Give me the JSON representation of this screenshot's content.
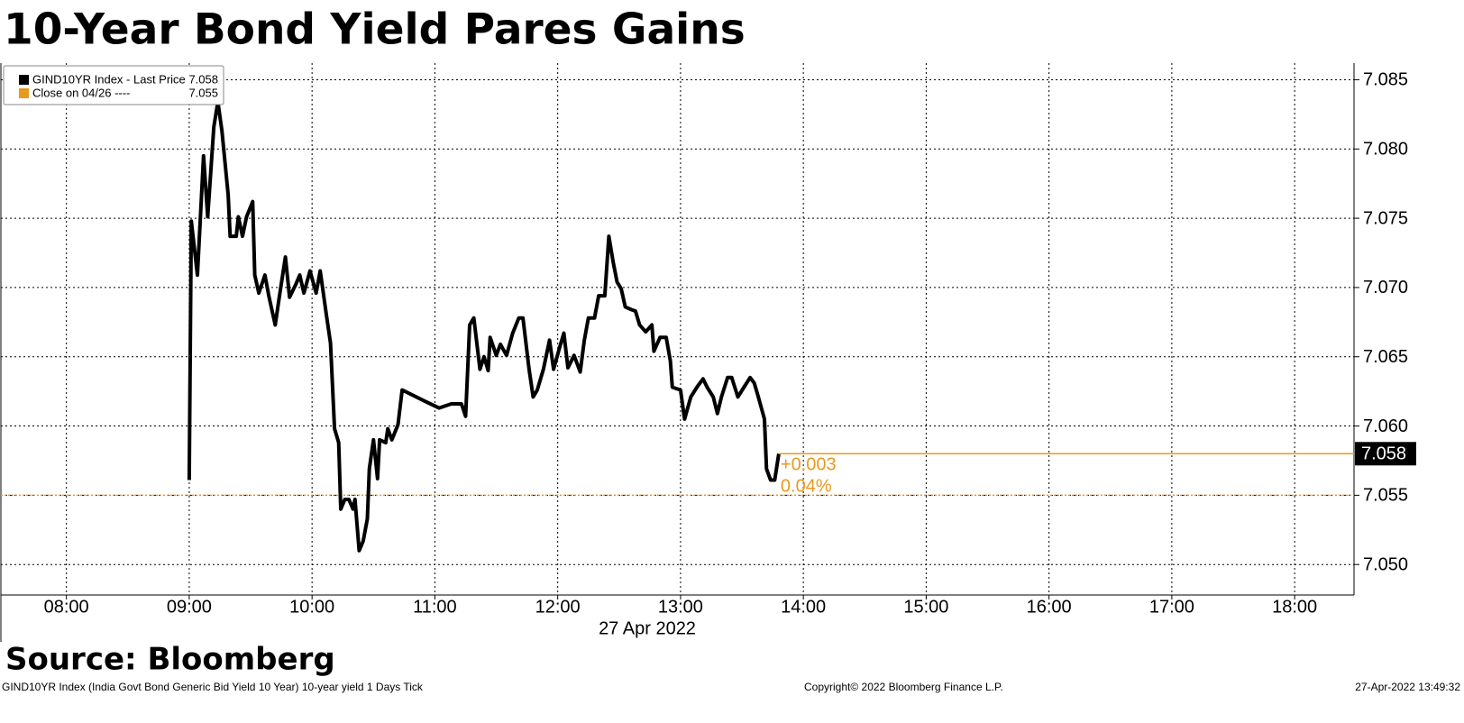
{
  "chart_data": {
    "type": "line",
    "title": "10-Year Bond Yield Pares Gains",
    "x_label": "27 Apr 2022",
    "x": [
      "09:00",
      "09:01",
      "09:04",
      "09:07",
      "09:09",
      "09:12",
      "09:14",
      "09:16",
      "09:19",
      "09:20",
      "09:23",
      "09:24",
      "09:26",
      "09:28",
      "09:31",
      "09:32",
      "09:34",
      "09:37",
      "09:39",
      "09:42",
      "09:44",
      "09:47",
      "09:49",
      "09:52",
      "09:54",
      "09:56",
      "09:59",
      "10:02",
      "10:04",
      "10:07",
      "10:09",
      "10:11",
      "10:13",
      "10:14",
      "10:16",
      "10:18",
      "10:20",
      "10:21",
      "10:23",
      "10:25",
      "10:27",
      "10:28",
      "10:30",
      "10:32",
      "10:33",
      "10:36",
      "10:37",
      "10:39",
      "10:42",
      "10:44",
      "10:55",
      "11:02",
      "11:08",
      "11:13",
      "11:15",
      "11:17",
      "11:19",
      "11:22",
      "11:24",
      "11:26",
      "11:27",
      "11:30",
      "11:32",
      "11:35",
      "11:38",
      "11:41",
      "11:43",
      "11:46",
      "11:48",
      "11:50",
      "11:53",
      "11:56",
      "11:58",
      "12:01",
      "12:03",
      "12:05",
      "12:08",
      "12:11",
      "12:13",
      "12:15",
      "12:18",
      "12:20",
      "12:23",
      "12:25",
      "12:27",
      "12:29",
      "12:31",
      "12:33",
      "12:36",
      "12:38",
      "12:40",
      "12:43",
      "12:46",
      "12:47",
      "12:50",
      "12:53",
      "12:55",
      "12:56",
      "13:00",
      "13:02",
      "13:05",
      "13:08",
      "13:11",
      "13:13",
      "13:16",
      "13:18",
      "13:20",
      "13:23",
      "13:25",
      "13:28",
      "13:31",
      "13:34",
      "13:36",
      "13:38",
      "13:41",
      "13:42",
      "13:44",
      "13:46",
      "13:48"
    ],
    "series": [
      {
        "name": "GIND10YR Index - Last Price",
        "color": "#000000",
        "last_value": 7.058,
        "values": [
          7.0561,
          7.0748,
          7.0709,
          7.0795,
          7.0751,
          7.0816,
          7.0834,
          7.0813,
          7.0767,
          7.0737,
          7.0737,
          7.0751,
          7.0737,
          7.0751,
          7.0762,
          7.0709,
          7.0696,
          7.0709,
          7.0693,
          7.0673,
          7.0693,
          7.0722,
          7.0693,
          7.0702,
          7.0709,
          7.0696,
          7.0712,
          7.0696,
          7.0712,
          7.068,
          7.066,
          7.0598,
          7.0588,
          7.054,
          7.0547,
          7.0547,
          7.054,
          7.0547,
          7.051,
          7.0517,
          7.0533,
          7.0569,
          7.059,
          7.0562,
          7.059,
          7.0588,
          7.0598,
          7.059,
          7.0601,
          7.0626,
          7.0618,
          7.0613,
          7.0616,
          7.0616,
          7.0607,
          7.0673,
          7.0678,
          7.0641,
          7.065,
          7.064,
          7.0664,
          7.0651,
          7.0659,
          7.0651,
          7.0667,
          7.0678,
          7.0678,
          7.0641,
          7.0621,
          7.0626,
          7.0641,
          7.0662,
          7.0641,
          7.0657,
          7.0667,
          7.0642,
          7.0651,
          7.0639,
          7.0662,
          7.0678,
          7.0678,
          7.0694,
          7.0694,
          7.0737,
          7.0719,
          7.0704,
          7.0699,
          7.0686,
          7.0684,
          7.0683,
          7.0673,
          7.0668,
          7.0673,
          7.0654,
          7.0664,
          7.0664,
          7.0647,
          7.0628,
          7.0626,
          7.0605,
          7.0621,
          7.0628,
          7.0634,
          7.0628,
          7.0621,
          7.0609,
          7.0621,
          7.0635,
          7.0635,
          7.0621,
          7.0628,
          7.0635,
          7.0631,
          7.0621,
          7.0605,
          7.0569,
          7.0561,
          7.0561,
          7.058
        ]
      }
    ],
    "reference": {
      "name": "Close on 04/26 ----",
      "value": 7.055,
      "color": "#e89a1c"
    },
    "change_labels": [
      "+0.003",
      "0.04%"
    ],
    "xlim": [
      "07:28",
      "18:29"
    ],
    "xticks": [
      "08:00",
      "09:00",
      "10:00",
      "11:00",
      "12:00",
      "13:00",
      "14:00",
      "15:00",
      "16:00",
      "17:00",
      "18:00"
    ],
    "ylim": [
      7.0478,
      7.0862
    ],
    "yticks": [
      {
        "value": 7.05,
        "label": "7.050"
      },
      7.055,
      {
        "value": 7.06,
        "label": "7.060"
      },
      7.065,
      {
        "value": 7.07,
        "label": "7.070"
      },
      7.075,
      {
        "value": 7.08,
        "label": "7.080"
      },
      7.085
    ],
    "grid": true,
    "legend": "top-left"
  },
  "source": "Source: Bloomberg",
  "footer": {
    "description": "GIND10YR Index (India Govt Bond Generic Bid Yield 10 Year) 10-year yield 1 Days  Tick",
    "copyright": "Copyright© 2022 Bloomberg Finance L.P.",
    "timestamp": "27-Apr-2022 13:49:32"
  }
}
